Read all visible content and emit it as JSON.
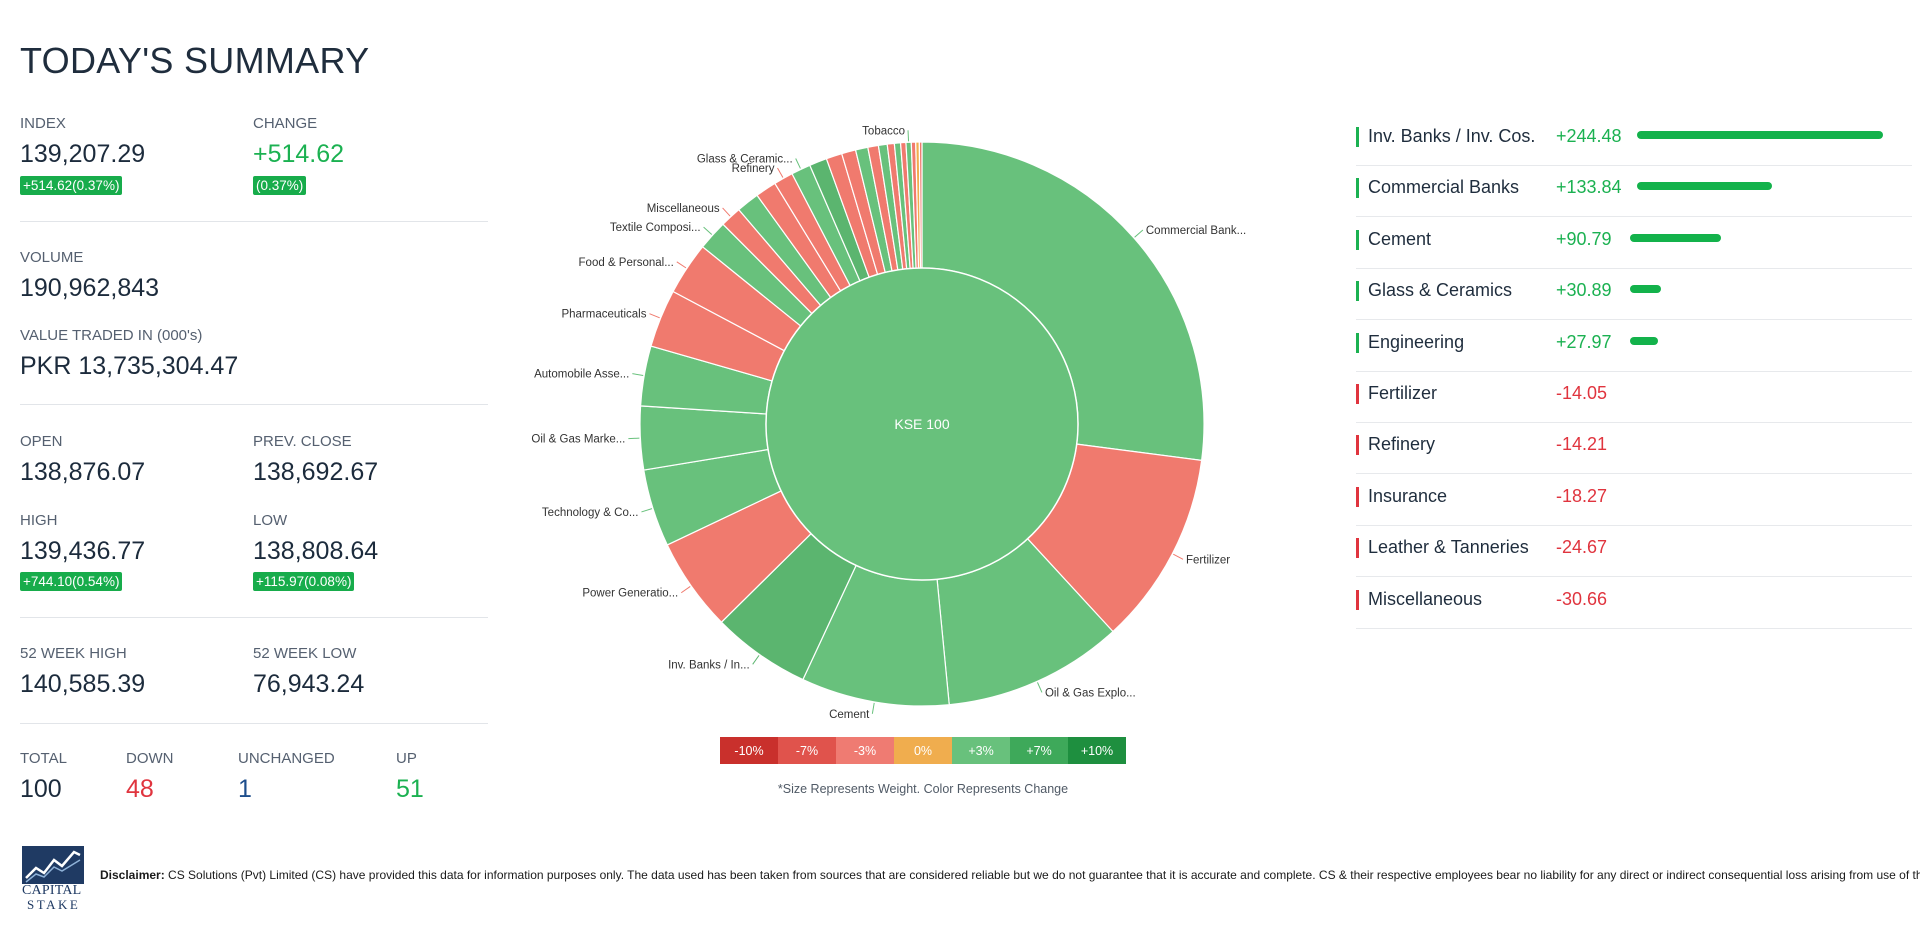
{
  "title": "TODAY'S SUMMARY",
  "stats": {
    "index_label": "INDEX",
    "index_value": "139,207.29",
    "index_badge": "+514.62(0.37%)",
    "change_label": "CHANGE",
    "change_value": "+514.62",
    "change_badge": "(0.37%)",
    "volume_label": "VOLUME",
    "volume_value": "190,962,843",
    "value_traded_label": "VALUE TRADED IN (000's)",
    "value_traded_value": "PKR 13,735,304.47",
    "open_label": "OPEN",
    "open_value": "138,876.07",
    "prev_close_label": "PREV. CLOSE",
    "prev_close_value": "138,692.67",
    "high_label": "HIGH",
    "high_value": "139,436.77",
    "high_badge": "+744.10(0.54%)",
    "low_label": "LOW",
    "low_value": "138,808.64",
    "low_badge": "+115.97(0.08%)",
    "week52_high_label": "52 WEEK HIGH",
    "week52_high_value": "140,585.39",
    "week52_low_label": "52 WEEK LOW",
    "week52_low_value": "76,943.24",
    "total_label": "TOTAL",
    "total_value": "100",
    "down_label": "DOWN",
    "down_value": "48",
    "unchanged_label": "UNCHANGED",
    "unchanged_value": "1",
    "up_label": "UP",
    "up_value": "51"
  },
  "chart_data": {
    "type": "sunburst",
    "center_label": "KSE 100",
    "colors": {
      "up": "#68c17c",
      "up_strong": "#5bb56f",
      "down": "#f07a6e",
      "neutral": "#f0ad4e"
    },
    "sectors": [
      {
        "label": "Commercial Bank...",
        "weight": 26.8,
        "dir": "up"
      },
      {
        "label": "Fertilizer",
        "weight": 11.0,
        "dir": "down"
      },
      {
        "label": "Oil & Gas Explo...",
        "weight": 10.2,
        "dir": "up"
      },
      {
        "label": "Cement",
        "weight": 8.4,
        "dir": "up"
      },
      {
        "label": "Inv. Banks / In...",
        "weight": 5.6,
        "dir": "up_strong"
      },
      {
        "label": "Power Generatio...",
        "weight": 5.3,
        "dir": "down"
      },
      {
        "label": "Technology & Co...",
        "weight": 4.4,
        "dir": "up"
      },
      {
        "label": "Oil & Gas Marke...",
        "weight": 3.6,
        "dir": "up"
      },
      {
        "label": "Automobile Asse...",
        "weight": 3.4,
        "dir": "up"
      },
      {
        "label": "Pharmaceuticals",
        "weight": 3.3,
        "dir": "down"
      },
      {
        "label": "Food & Personal...",
        "weight": 3.0,
        "dir": "down"
      },
      {
        "label": "Textile Composi...",
        "weight": 1.7,
        "dir": "up"
      },
      {
        "label": "Miscellaneous",
        "weight": 1.2,
        "dir": "down"
      },
      {
        "label": "",
        "weight": 1.3,
        "dir": "up"
      },
      {
        "label": "",
        "weight": 1.2,
        "dir": "down"
      },
      {
        "label": "Refinery",
        "weight": 1.1,
        "dir": "down"
      },
      {
        "label": "Glass & Ceramic...",
        "weight": 1.1,
        "dir": "up"
      },
      {
        "label": "",
        "weight": 1.0,
        "dir": "up_strong"
      },
      {
        "label": "",
        "weight": 0.9,
        "dir": "down"
      },
      {
        "label": "",
        "weight": 0.8,
        "dir": "down"
      },
      {
        "label": "",
        "weight": 0.7,
        "dir": "up"
      },
      {
        "label": "",
        "weight": 0.6,
        "dir": "down"
      },
      {
        "label": "",
        "weight": 0.5,
        "dir": "up"
      },
      {
        "label": "",
        "weight": 0.4,
        "dir": "down"
      },
      {
        "label": "",
        "weight": 0.35,
        "dir": "up"
      },
      {
        "label": "",
        "weight": 0.3,
        "dir": "down"
      },
      {
        "label": "Tobacco",
        "weight": 0.3,
        "dir": "up"
      },
      {
        "label": "",
        "weight": 0.25,
        "dir": "down"
      },
      {
        "label": "",
        "weight": 0.2,
        "dir": "neutral"
      },
      {
        "label": "",
        "weight": 0.15,
        "dir": "down"
      }
    ],
    "legend": [
      {
        "label": "-10%",
        "color": "#c9302c"
      },
      {
        "label": "-7%",
        "color": "#e0534c"
      },
      {
        "label": "-3%",
        "color": "#ef7b72"
      },
      {
        "label": "0%",
        "color": "#f0ad4e"
      },
      {
        "label": "+3%",
        "color": "#68c17c"
      },
      {
        "label": "+7%",
        "color": "#3ea95a"
      },
      {
        "label": "+10%",
        "color": "#1e8f3f"
      }
    ],
    "note": "*Size Represents Weight. Color Represents Change"
  },
  "sector_changes": [
    {
      "name": "Inv. Banks / Inv. Cos.",
      "change": "+244.48",
      "value": 244.48
    },
    {
      "name": "Commercial Banks",
      "change": "+133.84",
      "value": 133.84
    },
    {
      "name": "Cement",
      "change": "+90.79",
      "value": 90.79
    },
    {
      "name": "Glass & Ceramics",
      "change": "+30.89",
      "value": 30.89
    },
    {
      "name": "Engineering",
      "change": "+27.97",
      "value": 27.97
    },
    {
      "name": "Fertilizer",
      "change": "-14.05",
      "value": -14.05
    },
    {
      "name": "Refinery",
      "change": "-14.21",
      "value": -14.21
    },
    {
      "name": "Insurance",
      "change": "-18.27",
      "value": -18.27
    },
    {
      "name": "Leather & Tanneries",
      "change": "-24.67",
      "value": -24.67
    },
    {
      "name": "Miscellaneous",
      "change": "-30.66",
      "value": -30.66
    }
  ],
  "footer": {
    "logo_line1": "CAPITAL",
    "logo_line2": "STAKE",
    "disclaimer_label": "Disclaimer:",
    "disclaimer_text": " CS Solutions (Pvt) Limited (CS) have provided this data for information purposes only. The data used has been taken from sources that are considered reliable but we do not guarantee that it is accurate and complete. CS & their respective employees bear no liability for any direct or indirect consequential loss arising from use of this data.",
    "colors": {
      "positive": "#1bb151",
      "negative": "#e0343e"
    }
  }
}
